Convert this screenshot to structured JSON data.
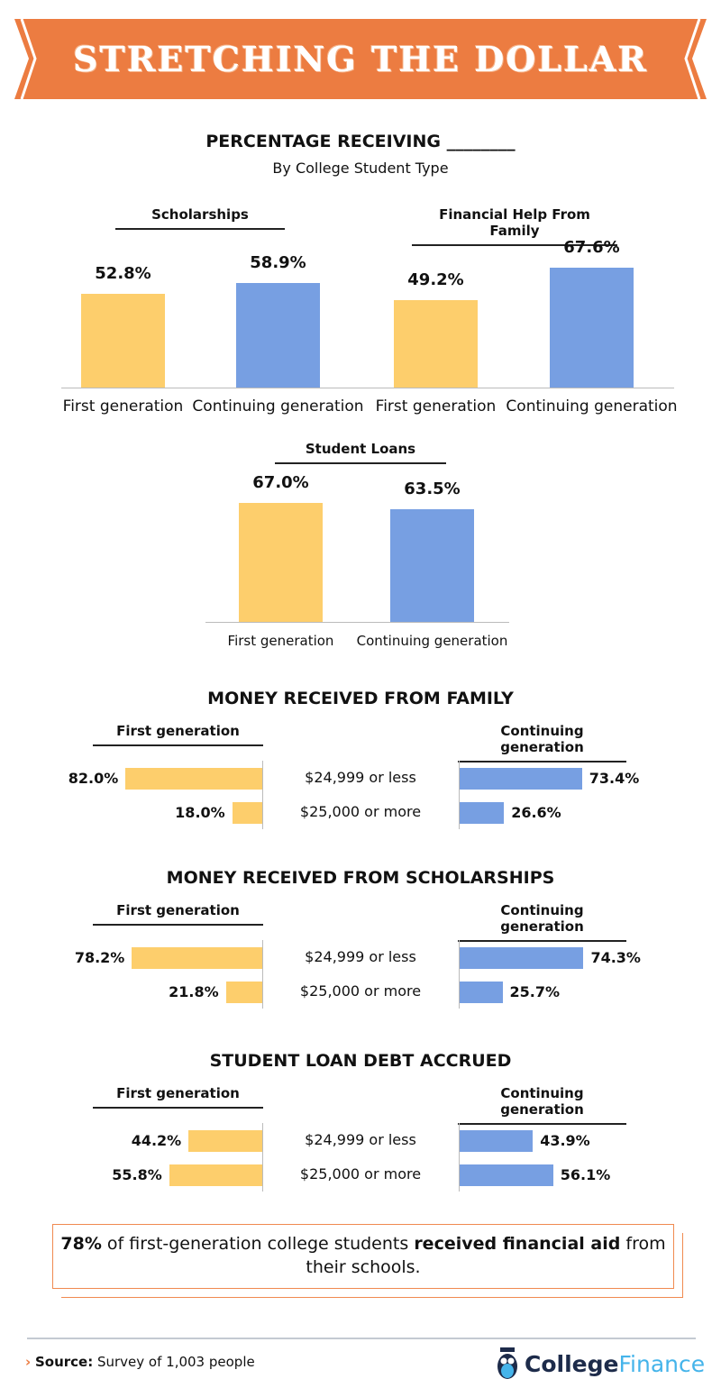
{
  "header": {
    "title": "STRETCHING THE DOLLAR"
  },
  "colors": {
    "banner": "#EC7C41",
    "first_generation": "#FDCE6C",
    "continuing_generation": "#779FE2",
    "axis": "#bbbbbb"
  },
  "section1": {
    "title": "PERCENTAGE RECEIVING ________",
    "subtitle": "By College Student Type"
  },
  "chart_data": [
    {
      "type": "bar",
      "title": "Scholarships",
      "categories": [
        "First generation",
        "Continuing generation"
      ],
      "values": [
        52.8,
        58.9
      ],
      "labels": [
        "52.8%",
        "58.9%"
      ],
      "ylim": [
        0,
        100
      ]
    },
    {
      "type": "bar",
      "title": "Financial Help From Family",
      "categories": [
        "First generation",
        "Continuing generation"
      ],
      "values": [
        49.2,
        67.6
      ],
      "labels": [
        "49.2%",
        "67.6%"
      ],
      "ylim": [
        0,
        100
      ]
    },
    {
      "type": "bar",
      "title": "Student Loans",
      "categories": [
        "First generation",
        "Continuing generation"
      ],
      "values": [
        67.0,
        63.5
      ],
      "labels": [
        "67.0%",
        "63.5%"
      ],
      "ylim": [
        0,
        100
      ]
    },
    {
      "type": "bar",
      "orientation": "horizontal",
      "title": "MONEY RECEIVED FROM FAMILY",
      "categories": [
        "$24,999 or less",
        "$25,000 or more"
      ],
      "series": [
        {
          "name": "First generation",
          "values": [
            82.0,
            18.0
          ],
          "labels": [
            "82.0%",
            "18.0%"
          ]
        },
        {
          "name": "Continuing generation",
          "values": [
            73.4,
            26.6
          ],
          "labels": [
            "73.4%",
            "26.6%"
          ]
        }
      ]
    },
    {
      "type": "bar",
      "orientation": "horizontal",
      "title": "MONEY RECEIVED FROM SCHOLARSHIPS",
      "categories": [
        "$24,999 or less",
        "$25,000 or more"
      ],
      "series": [
        {
          "name": "First generation",
          "values": [
            78.2,
            21.8
          ],
          "labels": [
            "78.2%",
            "21.8%"
          ]
        },
        {
          "name": "Continuing generation",
          "values": [
            74.3,
            25.7
          ],
          "labels": [
            "74.3%",
            "25.7%"
          ]
        }
      ]
    },
    {
      "type": "bar",
      "orientation": "horizontal",
      "title": "STUDENT LOAN DEBT ACCRUED",
      "categories": [
        "$24,999 or less",
        "$25,000 or more"
      ],
      "series": [
        {
          "name": "First generation",
          "values": [
            44.2,
            55.8
          ],
          "labels": [
            "44.2%",
            "55.8%"
          ]
        },
        {
          "name": "Continuing generation",
          "values": [
            43.9,
            56.1
          ],
          "labels": [
            "43.9%",
            "56.1%"
          ]
        }
      ]
    }
  ],
  "callout": {
    "bold1": "78%",
    "text1": " of first-generation college students ",
    "bold2": "received financial aid",
    "text2": " from their schools."
  },
  "footer": {
    "source_label": "Source:",
    "source_text": " Survey of 1,003 people",
    "logo_part1": "College",
    "logo_part2": "Finance"
  }
}
